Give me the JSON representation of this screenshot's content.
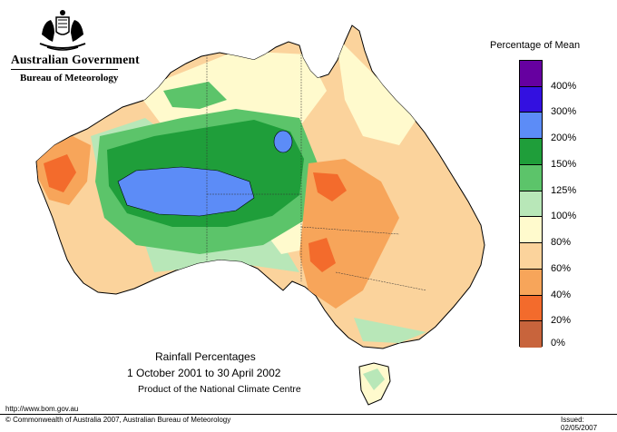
{
  "header": {
    "government": "Australian Government",
    "bureau": "Bureau of Meteorology"
  },
  "map": {
    "title": "Rainfall Percentages",
    "dates": "1 October 2001 to 30 April 2002",
    "product": "Product of the National Climate Centre"
  },
  "legend": {
    "title": "Percentage of Mean",
    "bands": [
      {
        "label": "400%",
        "color": "#6600a0"
      },
      {
        "label": "300%",
        "color": "#3310e0"
      },
      {
        "label": "200%",
        "color": "#5c8cf7"
      },
      {
        "label": "150%",
        "color": "#1f9e3a"
      },
      {
        "label": "125%",
        "color": "#5cc46a"
      },
      {
        "label": "100%",
        "color": "#b8e7b8"
      },
      {
        "label": "80%",
        "color": "#fffacd"
      },
      {
        "label": "60%",
        "color": "#fbd39c"
      },
      {
        "label": "40%",
        "color": "#f7a55a"
      },
      {
        "label": "20%",
        "color": "#f36b2c"
      },
      {
        "label": "0%",
        "color": "#c8643c"
      }
    ]
  },
  "footer": {
    "url": "http://www.bom.gov.au",
    "copyright": "© Commonwealth of Australia 2007, Australian Bureau of Meteorology",
    "issued": "Issued: 02/05/2007"
  }
}
